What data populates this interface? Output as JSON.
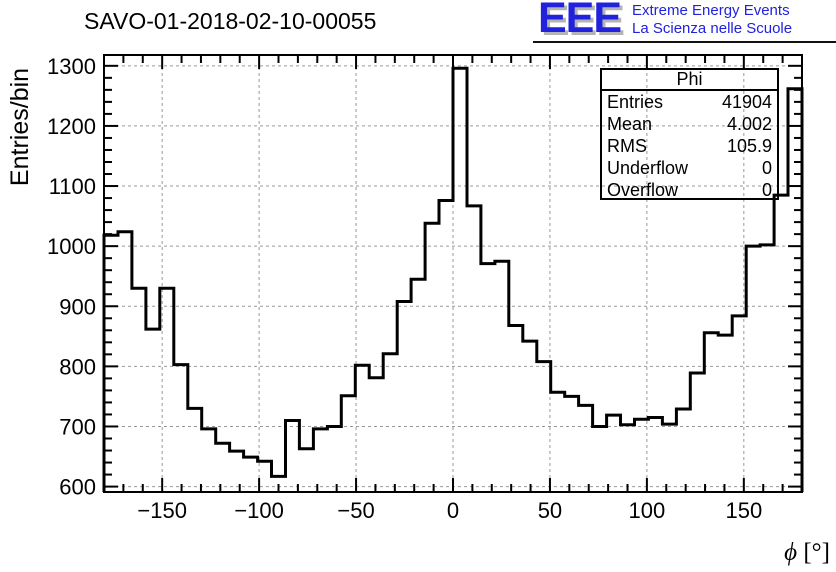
{
  "header": {
    "title": "SAVO-01-2018-02-10-00055",
    "logo": {
      "acronym": "EEE",
      "line1": "Extreme Energy Events",
      "line2": "La Scienza nelle Scuole",
      "color": "#2222dd",
      "shadow_color": "#b4b4b4"
    }
  },
  "stats_box": {
    "title": "Phi",
    "rows": [
      {
        "label": "Entries",
        "value": "41904"
      },
      {
        "label": "Mean",
        "value": "4.002"
      },
      {
        "label": "RMS",
        "value": "105.9"
      },
      {
        "label": "Underflow",
        "value": "0"
      },
      {
        "label": "Overflow",
        "value": "0"
      }
    ]
  },
  "chart_data": {
    "type": "bar",
    "title": "SAVO-01-2018-02-10-00055",
    "xlabel": "ϕ [°]",
    "ylabel": "Entries/bin",
    "xlim": [
      -180,
      180
    ],
    "ylim": [
      591,
      1318
    ],
    "x_major_ticks": [
      -150,
      -100,
      -50,
      0,
      50,
      100,
      150
    ],
    "x_minor_step": 10,
    "y_major_ticks": [
      600,
      700,
      800,
      900,
      1000,
      1100,
      1200,
      1300
    ],
    "y_minor_step": 20,
    "grid": true,
    "legend_position": "none",
    "bin_start": -180,
    "bin_width": 7.2,
    "values": [
      1018,
      1024,
      930,
      862,
      930,
      803,
      730,
      696,
      672,
      659,
      649,
      642,
      617,
      710,
      663,
      696,
      700,
      751,
      802,
      781,
      821,
      908,
      945,
      1038,
      1076,
      1296,
      1067,
      971,
      975,
      868,
      842,
      808,
      757,
      750,
      735,
      700,
      719,
      703,
      712,
      715,
      704,
      729,
      789,
      856,
      852,
      884,
      1000,
      1002,
      1085,
      1262
    ]
  },
  "colors": {
    "histogram": "#000000",
    "grid": "#999999",
    "frame": "#000000"
  }
}
